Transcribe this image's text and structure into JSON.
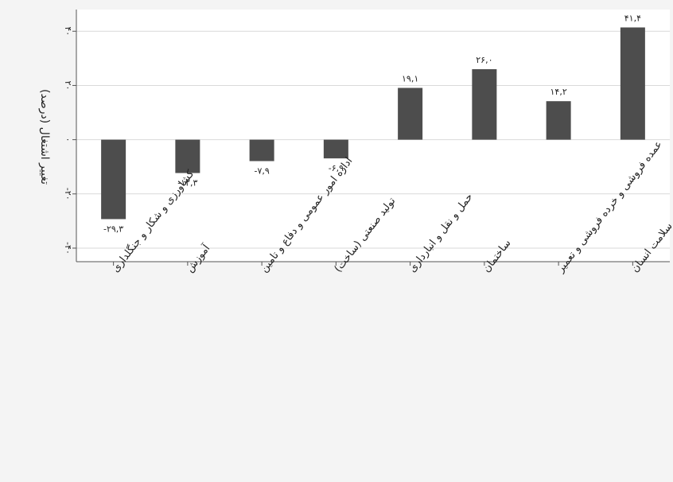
{
  "chart_data": {
    "type": "bar",
    "title": "",
    "xlabel": "",
    "ylabel": "تغییر اشتغال (درصد)",
    "ylim": [
      -45,
      48
    ],
    "yticks": [
      40,
      20,
      0,
      -20,
      -40
    ],
    "ytick_labels": [
      "۴۰",
      "۲۰",
      "۰",
      "-۲۰",
      "-۴۰"
    ],
    "grid": true,
    "bar_color": "#4d4d4d",
    "categories": [
      "کشاورزی و شکار و جنگلداری",
      "آموزش",
      "اداره امور عمومی و دفاع و تامین",
      "تولید صنعتی (ساخت)",
      "حمل و نقل و انبارداری",
      "ساختمان",
      "عمده فروشی و خرده فروشی و تعمیر",
      "فعالیت‌های مربوط به سلامت انسان"
    ],
    "values": [
      -29.3,
      -12.3,
      -7.9,
      -6.9,
      19.1,
      26.0,
      14.2,
      41.4
    ],
    "value_labels": [
      "-۲۹,۳",
      "-۱۲,۳",
      "-۷,۹",
      "-۶,۹",
      "۱۹,۱",
      "۲۶,۰",
      "۱۴,۲",
      "۴۱,۴"
    ]
  }
}
